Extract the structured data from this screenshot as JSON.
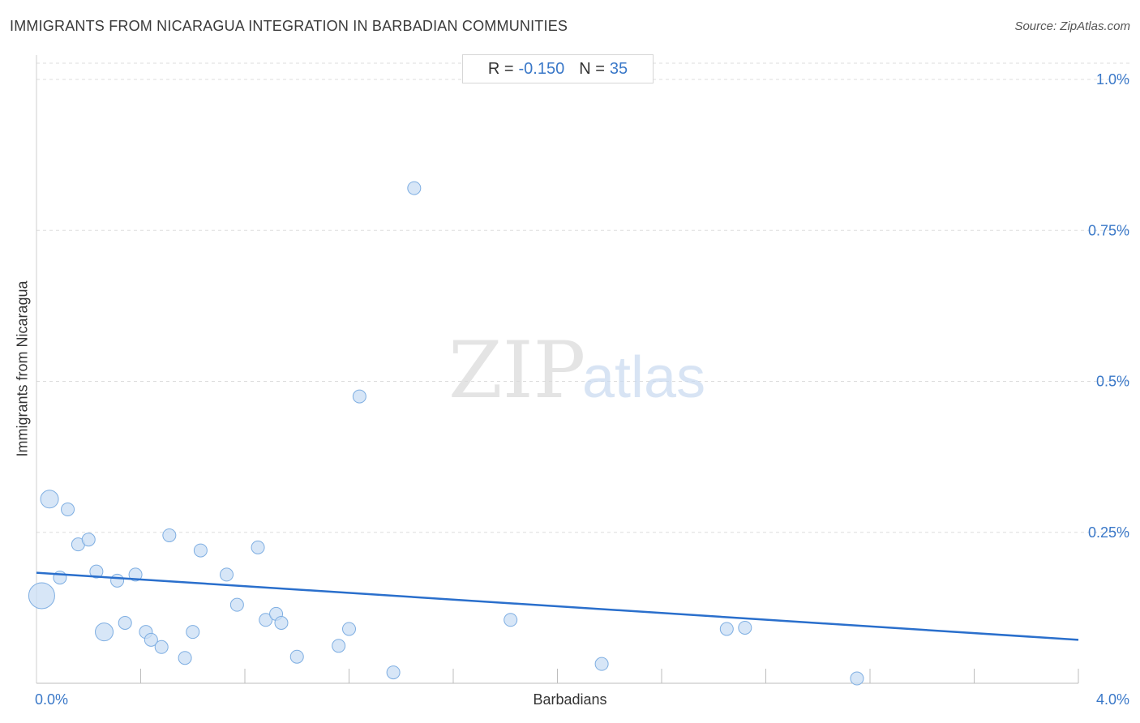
{
  "header": {
    "title": "IMMIGRANTS FROM NICARAGUA INTEGRATION IN BARBADIAN COMMUNITIES",
    "source": "Source: ZipAtlas.com"
  },
  "stats": {
    "r_label": "R =",
    "r_value": "-0.150",
    "n_label": "N =",
    "n_value": "35"
  },
  "watermark": {
    "zip": "ZIP",
    "atlas": "atlas"
  },
  "colors": {
    "point_fill": "#c9ddf4",
    "point_stroke": "#7eaee2",
    "trend_line": "#2a6fcc",
    "tick_label": "#3a78c8",
    "grid": "#dddddd"
  },
  "chart_data": {
    "type": "scatter",
    "title": "IMMIGRANTS FROM NICARAGUA INTEGRATION IN BARBADIAN COMMUNITIES",
    "xlabel": "Barbadians",
    "ylabel": "Immigrants from Nicaragua",
    "xlim": [
      0,
      4.0
    ],
    "ylim": [
      0,
      1.0
    ],
    "x_ticks": [
      {
        "value": 0,
        "label": "0.0%"
      },
      {
        "value": 4.0,
        "label": "4.0%"
      }
    ],
    "y_ticks": [
      {
        "value": 0.25,
        "label": "0.25%"
      },
      {
        "value": 0.5,
        "label": "0.5%"
      },
      {
        "value": 0.75,
        "label": "0.75%"
      },
      {
        "value": 1.0,
        "label": "1.0%"
      }
    ],
    "x_minor_ticks": [
      0.4,
      0.8,
      1.2,
      1.6,
      2.0,
      2.4,
      2.8,
      3.2,
      3.6,
      4.0
    ],
    "grid": true,
    "legend": "none",
    "points": [
      {
        "x": 0.02,
        "y": 0.145,
        "size": 3
      },
      {
        "x": 0.05,
        "y": 0.305,
        "size": 2
      },
      {
        "x": 0.09,
        "y": 0.175,
        "size": 1
      },
      {
        "x": 0.12,
        "y": 0.288,
        "size": 1
      },
      {
        "x": 0.16,
        "y": 0.23,
        "size": 1
      },
      {
        "x": 0.2,
        "y": 0.238,
        "size": 1
      },
      {
        "x": 0.23,
        "y": 0.185,
        "size": 1
      },
      {
        "x": 0.26,
        "y": 0.085,
        "size": 2
      },
      {
        "x": 0.31,
        "y": 0.17,
        "size": 1
      },
      {
        "x": 0.34,
        "y": 0.1,
        "size": 1
      },
      {
        "x": 0.38,
        "y": 0.18,
        "size": 1
      },
      {
        "x": 0.42,
        "y": 0.085,
        "size": 1
      },
      {
        "x": 0.44,
        "y": 0.072,
        "size": 1
      },
      {
        "x": 0.48,
        "y": 0.06,
        "size": 1
      },
      {
        "x": 0.51,
        "y": 0.245,
        "size": 1
      },
      {
        "x": 0.57,
        "y": 0.042,
        "size": 1
      },
      {
        "x": 0.6,
        "y": 0.085,
        "size": 1
      },
      {
        "x": 0.63,
        "y": 0.22,
        "size": 1
      },
      {
        "x": 0.73,
        "y": 0.18,
        "size": 1
      },
      {
        "x": 0.77,
        "y": 0.13,
        "size": 1
      },
      {
        "x": 0.85,
        "y": 0.225,
        "size": 1
      },
      {
        "x": 0.88,
        "y": 0.105,
        "size": 1
      },
      {
        "x": 0.92,
        "y": 0.115,
        "size": 1
      },
      {
        "x": 0.94,
        "y": 0.1,
        "size": 1
      },
      {
        "x": 1.0,
        "y": 0.044,
        "size": 1
      },
      {
        "x": 1.16,
        "y": 0.062,
        "size": 1
      },
      {
        "x": 1.2,
        "y": 0.09,
        "size": 1
      },
      {
        "x": 1.24,
        "y": 0.475,
        "size": 1
      },
      {
        "x": 1.37,
        "y": 0.018,
        "size": 1
      },
      {
        "x": 1.45,
        "y": 0.82,
        "size": 1
      },
      {
        "x": 1.82,
        "y": 0.105,
        "size": 1
      },
      {
        "x": 2.17,
        "y": 0.032,
        "size": 1
      },
      {
        "x": 2.65,
        "y": 0.09,
        "size": 1
      },
      {
        "x": 2.72,
        "y": 0.092,
        "size": 1
      },
      {
        "x": 3.15,
        "y": 0.008,
        "size": 1
      }
    ],
    "trend_line": {
      "x": [
        0,
        4.0
      ],
      "y": [
        0.183,
        0.072
      ]
    }
  }
}
